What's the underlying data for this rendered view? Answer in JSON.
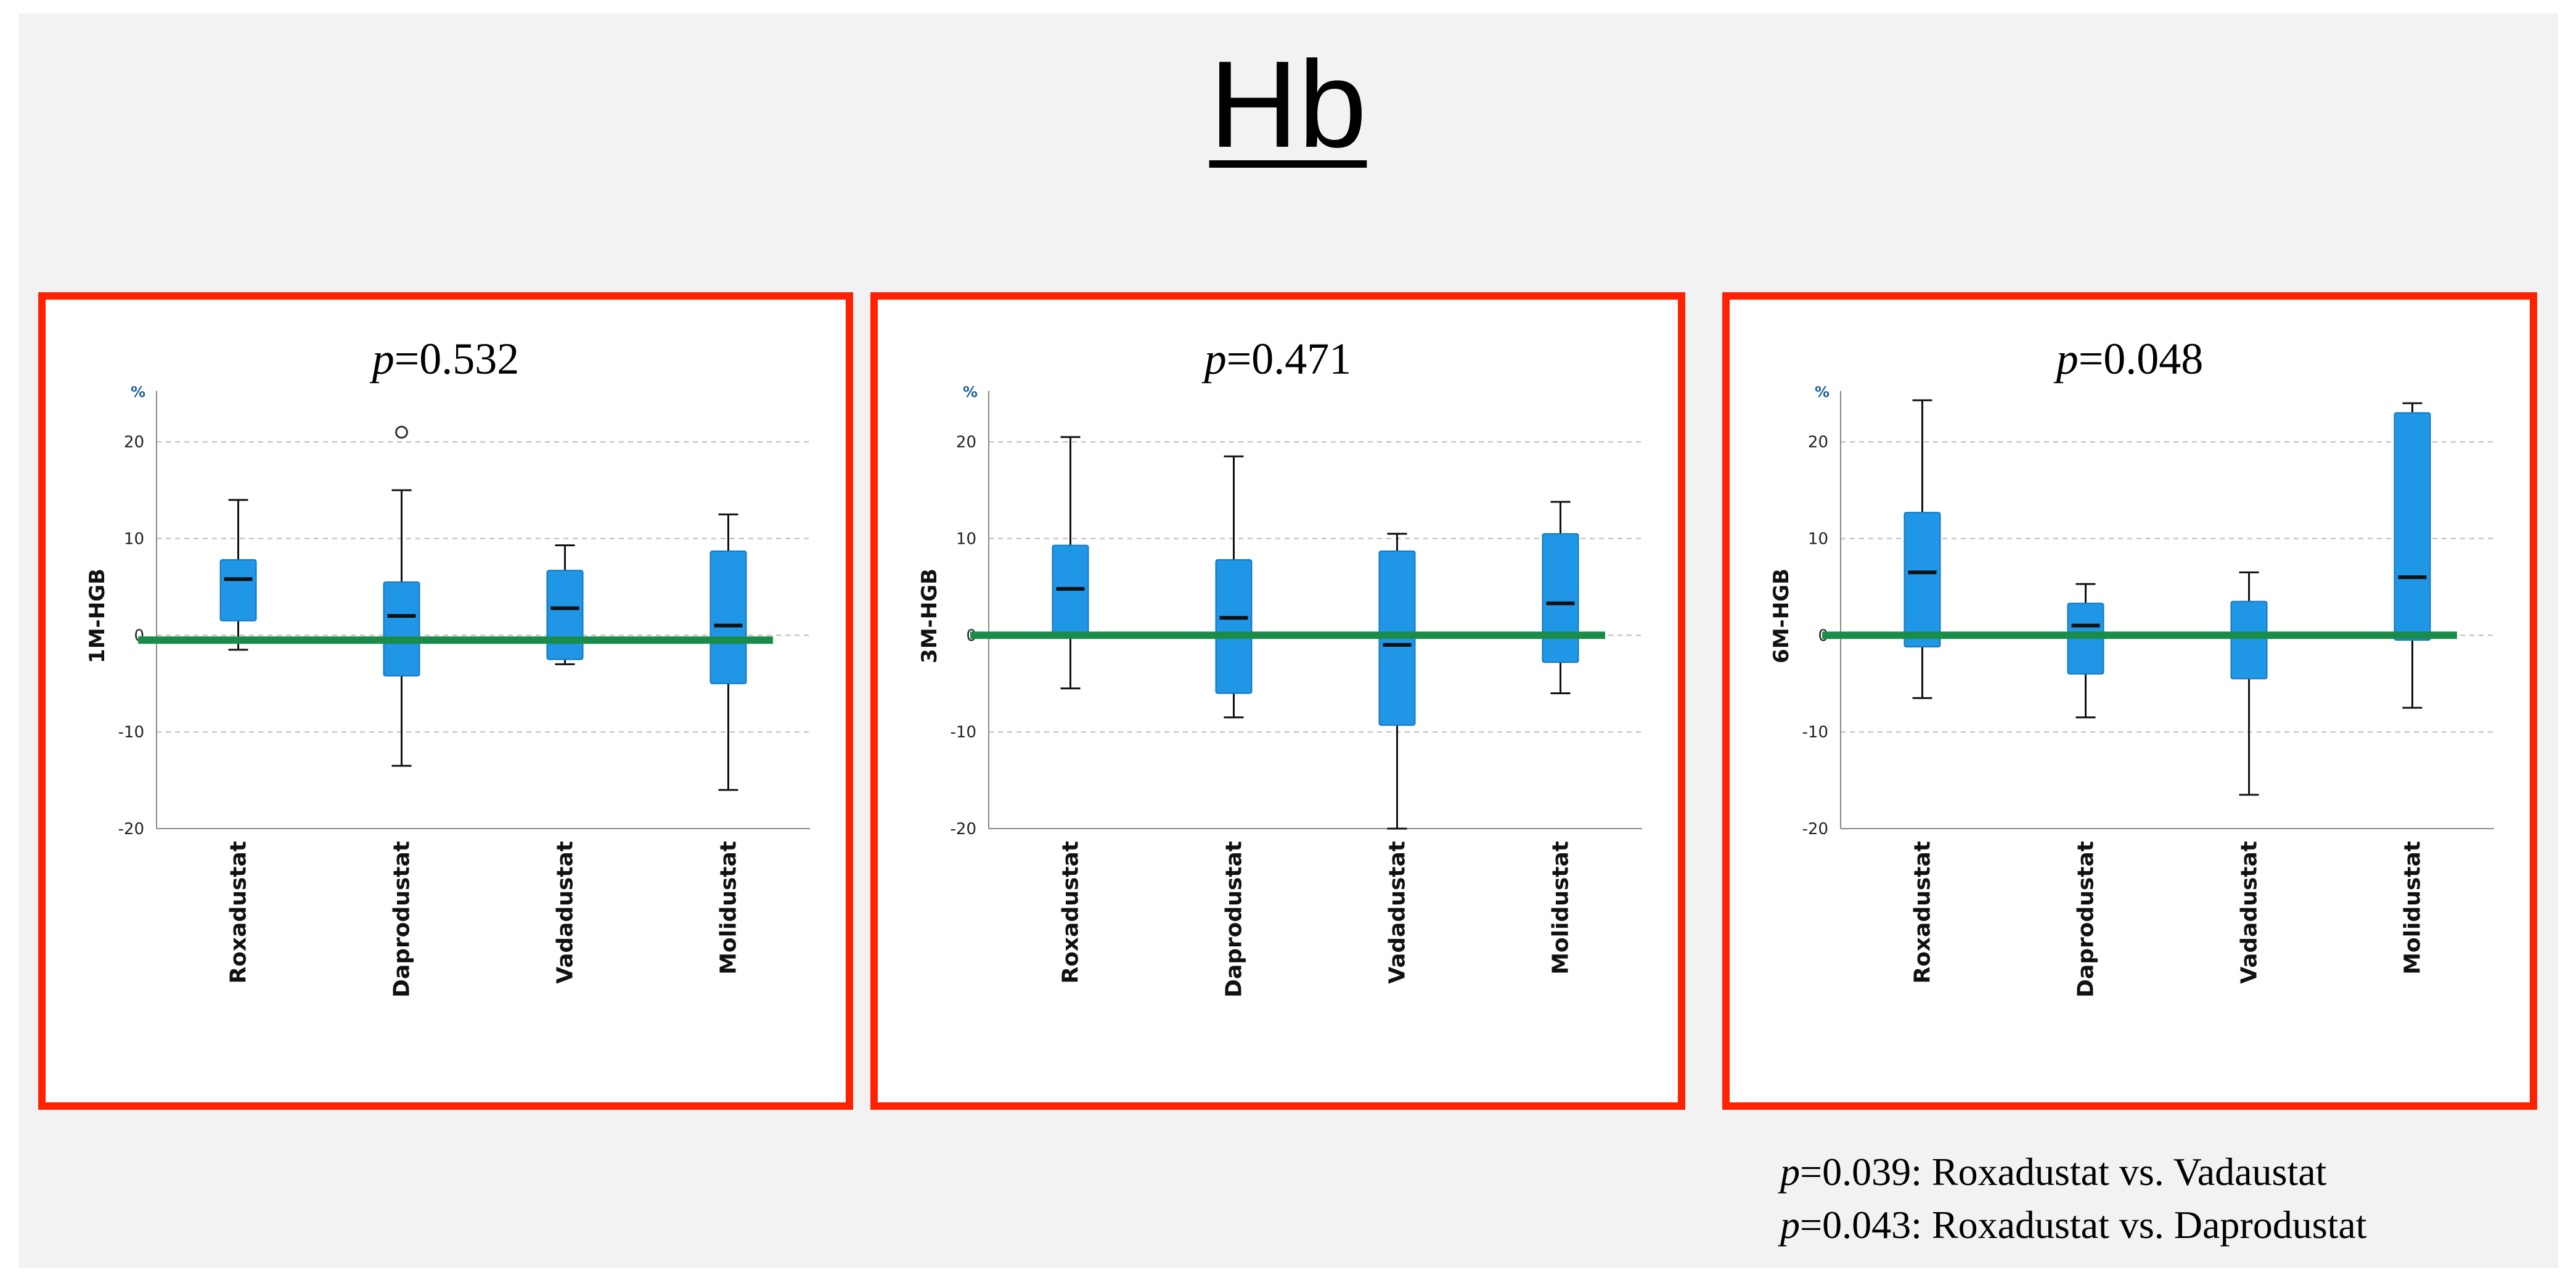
{
  "title": "Hb",
  "notes": [
    {
      "p_label": "p",
      "text": "=0.039: Roxadustat vs. Vadaustat"
    },
    {
      "p_label": "p",
      "text": "=0.043: Roxadustat vs. Daprodustat"
    }
  ],
  "colors": {
    "box_fill": "#1f96e6",
    "baseline": "#1a8c4a",
    "panel_border": "#ff2200",
    "grid": "#bbbbbb"
  },
  "chart_data": [
    {
      "type": "box",
      "title_label": "p",
      "title_value": "=0.532",
      "ylabel": "1M-HGB",
      "unit": "%",
      "ylim": [
        -20,
        24
      ],
      "yticks": [
        -20,
        -10,
        0,
        10,
        20
      ],
      "grid": true,
      "reference_line": -0.5,
      "categories": [
        "Roxadustat",
        "Daprodustat",
        "Vadadustat",
        "Molidustat"
      ],
      "boxes": [
        {
          "min": -1.5,
          "q1": 1.5,
          "median": 5.8,
          "q3": 7.8,
          "max": 14
        },
        {
          "min": -13.5,
          "q1": -4.2,
          "median": 2,
          "q3": 5.5,
          "max": 15,
          "outliers": [
            21
          ]
        },
        {
          "min": -3,
          "q1": -2.5,
          "median": 2.8,
          "q3": 6.7,
          "max": 9.3
        },
        {
          "min": -16,
          "q1": -5,
          "median": 1,
          "q3": 8.7,
          "max": 12.5
        }
      ]
    },
    {
      "type": "box",
      "title_label": "p",
      "title_value": "=0.471",
      "ylabel": "3M-HGB",
      "unit": "%",
      "ylim": [
        -20,
        24
      ],
      "yticks": [
        -20,
        -10,
        0,
        10,
        20
      ],
      "grid": true,
      "reference_line": 0,
      "categories": [
        "Roxadustat",
        "Daprodustat",
        "Vadadustat",
        "Molidustat"
      ],
      "boxes": [
        {
          "min": -5.5,
          "q1": 0,
          "median": 4.8,
          "q3": 9.3,
          "max": 20.5
        },
        {
          "min": -8.5,
          "q1": -6,
          "median": 1.8,
          "q3": 7.8,
          "max": 18.5
        },
        {
          "min": -20,
          "q1": -9.3,
          "median": -1,
          "q3": 8.7,
          "max": 10.5
        },
        {
          "min": -6,
          "q1": -2.8,
          "median": 3.3,
          "q3": 10.5,
          "max": 13.8
        }
      ]
    },
    {
      "type": "box",
      "title_label": "p",
      "title_value": "=0.048",
      "ylabel": "6M-HGB",
      "unit": "%",
      "ylim": [
        -20,
        24
      ],
      "yticks": [
        -20,
        -10,
        0,
        10,
        20
      ],
      "grid": true,
      "reference_line": 0,
      "categories": [
        "Roxadustat",
        "Daprodustat",
        "Vadadustat",
        "Molidustat"
      ],
      "boxes": [
        {
          "min": -6.5,
          "q1": -1.2,
          "median": 6.5,
          "q3": 12.7,
          "max": 24.3
        },
        {
          "min": -8.5,
          "q1": -4,
          "median": 1,
          "q3": 3.3,
          "max": 5.3
        },
        {
          "min": -16.5,
          "q1": -4.5,
          "median": 0,
          "q3": 3.5,
          "max": 6.5
        },
        {
          "min": -7.5,
          "q1": -0.5,
          "median": 6,
          "q3": 23,
          "max": 24
        }
      ]
    }
  ]
}
